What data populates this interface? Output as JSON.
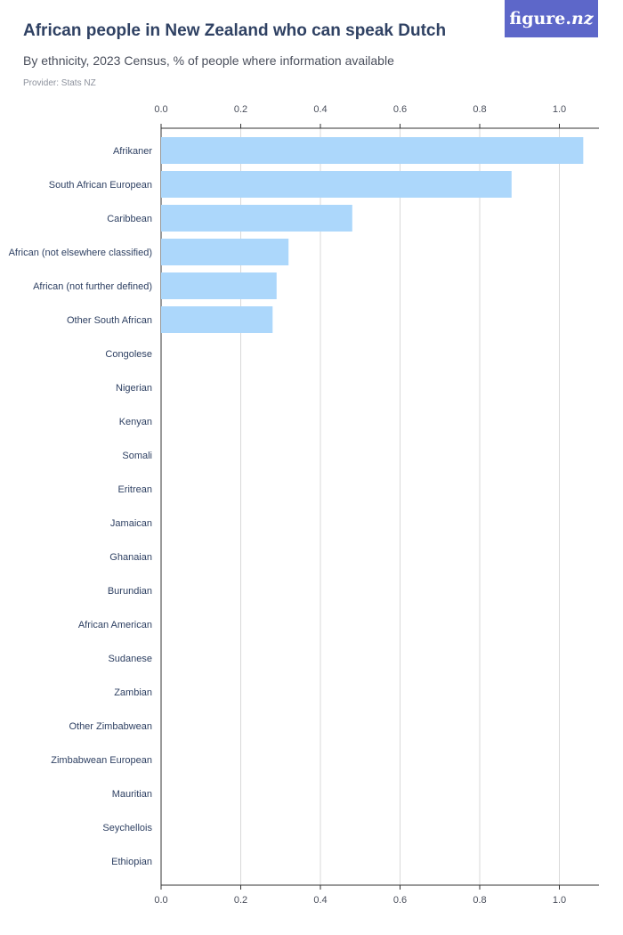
{
  "header": {
    "title": "African people in New Zealand who can speak Dutch",
    "subtitle": "By ethnicity, 2023 Census, % of people where information available",
    "provider": "Provider: Stats NZ"
  },
  "logo": {
    "text": "figure.",
    "accent": "nz"
  },
  "colors": {
    "bar": "#acd7fb",
    "grid": "#d9d9d9",
    "axis": "#333333",
    "logo_bg": "#5d67c9"
  },
  "chart_data": {
    "type": "bar",
    "orientation": "horizontal",
    "categories": [
      "Afrikaner",
      "South African European",
      "Caribbean",
      "African (not elsewhere classified)",
      "African (not further defined)",
      "Other South African",
      "Congolese",
      "Nigerian",
      "Kenyan",
      "Somali",
      "Eritrean",
      "Jamaican",
      "Ghanaian",
      "Burundian",
      "African American",
      "Sudanese",
      "Zambian",
      "Other Zimbabwean",
      "Zimbabwean European",
      "Mauritian",
      "Seychellois",
      "Ethiopian"
    ],
    "values": [
      1.06,
      0.88,
      0.48,
      0.32,
      0.29,
      0.28,
      0,
      0,
      0,
      0,
      0,
      0,
      0,
      0,
      0,
      0,
      0,
      0,
      0,
      0,
      0,
      0
    ],
    "xlim": [
      0,
      1.1
    ],
    "xticks": [
      "0.0",
      "0.2",
      "0.4",
      "0.6",
      "0.8",
      "1.0"
    ],
    "xtick_values": [
      0,
      0.2,
      0.4,
      0.6,
      0.8,
      1.0
    ],
    "grid": true,
    "legend": false
  }
}
